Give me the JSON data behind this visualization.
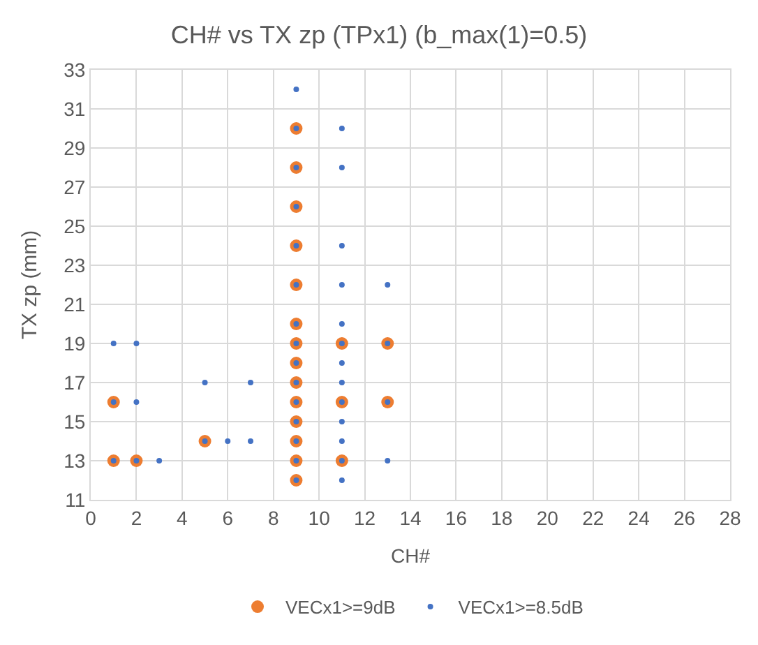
{
  "chart_data": {
    "type": "scatter",
    "title": "CH# vs TX zp (TPx1) (b_max(1)=0.5)",
    "xlabel": "CH#",
    "ylabel": "TX zp (mm)",
    "xlim": [
      0,
      28
    ],
    "xticks": [
      0,
      2,
      4,
      6,
      8,
      10,
      12,
      14,
      16,
      18,
      20,
      22,
      24,
      26,
      28
    ],
    "ylim": [
      11,
      33
    ],
    "yticks": [
      11,
      13,
      15,
      17,
      19,
      21,
      23,
      25,
      27,
      29,
      31,
      33
    ],
    "grid": true,
    "legend": "bottom",
    "marker": "circle",
    "series": [
      {
        "name": "VECx1>=9dB",
        "color": "#ed7d31",
        "x": [
          1,
          1,
          2,
          5,
          9,
          9,
          9,
          9,
          9,
          9,
          9,
          9,
          9,
          9,
          9,
          9,
          9,
          9,
          11,
          11,
          11,
          13,
          13
        ],
        "values": [
          13,
          16,
          13,
          14,
          12,
          13,
          14,
          15,
          16,
          17,
          18,
          19,
          20,
          22,
          24,
          26,
          28,
          30,
          13,
          16,
          19,
          16,
          19
        ]
      },
      {
        "name": "VECx1>=8.5dB",
        "color": "#4472c4",
        "x": [
          1,
          1,
          1,
          2,
          2,
          2,
          3,
          5,
          5,
          6,
          7,
          7,
          9,
          9,
          9,
          9,
          9,
          9,
          9,
          9,
          9,
          9,
          9,
          9,
          9,
          9,
          9,
          11,
          11,
          11,
          11,
          11,
          11,
          11,
          11,
          11,
          11,
          11,
          11,
          11,
          13,
          13,
          13,
          13
        ],
        "values": [
          13,
          16,
          19,
          13,
          16,
          19,
          13,
          14,
          17,
          14,
          14,
          17,
          12,
          13,
          14,
          15,
          16,
          17,
          18,
          19,
          20,
          22,
          24,
          26,
          28,
          30,
          32,
          12,
          13,
          14,
          15,
          16,
          17,
          18,
          19,
          20,
          22,
          24,
          28,
          30,
          13,
          16,
          19,
          22
        ]
      }
    ]
  }
}
